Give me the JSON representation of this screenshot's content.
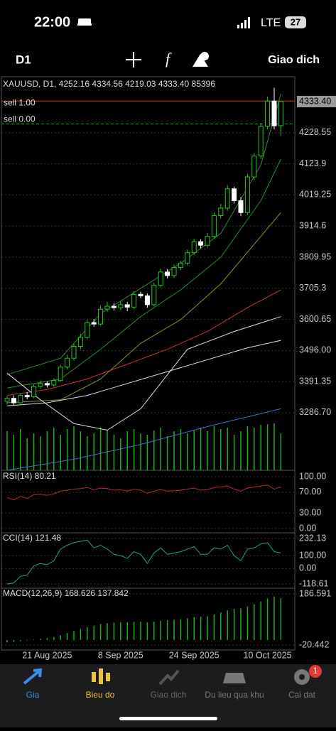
{
  "status_bar": {
    "time": "22:00",
    "network": "LTE",
    "battery": "27"
  },
  "toolbar": {
    "timeframe": "D1",
    "trade": "Giao dich"
  },
  "chart_data": {
    "type": "candlestick",
    "title": "XAUUSD, D1, 4252.16 4334.56 4219.03 4333.40 85396",
    "categories": [
      null,
      null,
      null,
      null,
      null,
      null,
      "21 Aug 2025",
      null,
      null,
      null,
      null,
      null,
      null,
      null,
      null,
      null,
      null,
      "8 Sep 2025",
      null,
      null,
      null,
      null,
      null,
      null,
      null,
      null,
      null,
      null,
      "24 Sep 2025",
      null,
      null,
      null,
      null,
      null,
      null,
      null,
      null,
      null,
      null,
      "10 Oct 2025",
      null,
      null
    ],
    "candles": [
      [
        3325,
        3342,
        3315,
        3335
      ],
      [
        3335,
        3345,
        3312,
        3320
      ],
      [
        3320,
        3352,
        3316,
        3345
      ],
      [
        3345,
        3356,
        3332,
        3340
      ],
      [
        3340,
        3382,
        3335,
        3375
      ],
      [
        3375,
        3395,
        3368,
        3385
      ],
      [
        3385,
        3392,
        3372,
        3380
      ],
      [
        3380,
        3402,
        3374,
        3395
      ],
      [
        3395,
        3448,
        3390,
        3440
      ],
      [
        3440,
        3482,
        3432,
        3470
      ],
      [
        3470,
        3520,
        3462,
        3510
      ],
      [
        3510,
        3552,
        3502,
        3540
      ],
      [
        3540,
        3600,
        3534,
        3590
      ],
      [
        3590,
        3602,
        3576,
        3585
      ],
      [
        3585,
        3648,
        3580,
        3635
      ],
      [
        3635,
        3660,
        3626,
        3645
      ],
      [
        3645,
        3655,
        3630,
        3640
      ],
      [
        3640,
        3662,
        3632,
        3650
      ],
      [
        3650,
        3660,
        3628,
        3642
      ],
      [
        3642,
        3696,
        3636,
        3685
      ],
      [
        3685,
        3694,
        3672,
        3680
      ],
      [
        3680,
        3688,
        3640,
        3650
      ],
      [
        3650,
        3724,
        3644,
        3715
      ],
      [
        3715,
        3772,
        3708,
        3760
      ],
      [
        3760,
        3770,
        3738,
        3748
      ],
      [
        3748,
        3786,
        3740,
        3775
      ],
      [
        3775,
        3798,
        3766,
        3790
      ],
      [
        3790,
        3836,
        3782,
        3825
      ],
      [
        3825,
        3872,
        3818,
        3862
      ],
      [
        3862,
        3870,
        3840,
        3850
      ],
      [
        3850,
        3892,
        3842,
        3880
      ],
      [
        3880,
        3960,
        3872,
        3950
      ],
      [
        3950,
        3990,
        3940,
        3975
      ],
      [
        3975,
        4052,
        3966,
        4040
      ],
      [
        4040,
        4048,
        3990,
        4000
      ],
      [
        4000,
        4012,
        3948,
        3960
      ],
      [
        3960,
        4090,
        3952,
        4080
      ],
      [
        4080,
        4160,
        4070,
        4150
      ],
      [
        4150,
        4262,
        4140,
        4250
      ],
      [
        4250,
        4350,
        4240,
        4335
      ],
      [
        4335,
        4380,
        4240,
        4252
      ],
      [
        4252.16,
        4334.56,
        4219.03,
        4333.4
      ]
    ],
    "bull_color": "#22c922",
    "bear_color": "#ffffff",
    "ylim": [
      3093,
      4417
    ],
    "yticks": [
      4228.55,
      4123.9,
      4019.25,
      3914.6,
      3809.95,
      3705.3,
      3600.65,
      {
        "value": 3496,
        "label": "3496.00"
      },
      3391.35,
      {
        "value": 3286.7,
        "label": "3286.70"
      }
    ],
    "last_price": {
      "value": 4333.4,
      "label": "4333.40"
    },
    "orders": [
      {
        "label": "sell 1.00",
        "price": 4335,
        "color": "#c0392b"
      },
      {
        "label": "sell 0.00",
        "price": 4258,
        "color": "#2e9a2e"
      }
    ],
    "lines": [
      {
        "color": "#2e8b2e",
        "x": [
          0,
          8,
          14,
          20,
          26,
          32,
          38,
          41
        ],
        "values": [
          3415,
          3470,
          3620,
          3705,
          3790,
          3890,
          4120,
          4360
        ]
      },
      {
        "color": "#2e8b2e",
        "x": [
          0,
          8,
          14,
          20,
          26,
          32,
          38,
          41
        ],
        "values": [
          3370,
          3400,
          3500,
          3610,
          3700,
          3810,
          4000,
          4140
        ]
      },
      {
        "color": "#7a9a2e",
        "x": [
          0,
          8,
          14,
          20,
          26,
          32,
          38,
          41
        ],
        "values": [
          3320,
          3330,
          3400,
          3520,
          3600,
          3720,
          3880,
          3960
        ]
      },
      {
        "color": "#c0392b",
        "x": [
          0,
          6,
          12,
          18,
          24,
          30,
          36,
          41
        ],
        "values": [
          3345,
          3365,
          3400,
          3450,
          3500,
          3560,
          3640,
          3700
        ]
      },
      {
        "color": "#dddddd",
        "x": [
          0,
          6,
          12,
          18,
          24,
          30,
          36,
          41
        ],
        "values": [
          3310,
          3320,
          3345,
          3385,
          3425,
          3465,
          3505,
          3530
        ]
      },
      {
        "color": "#dddddd",
        "x": [
          0,
          5,
          10,
          15,
          20,
          27,
          34,
          41
        ],
        "values": [
          3420,
          3330,
          3250,
          3228,
          3300,
          3500,
          3560,
          3610
        ]
      },
      {
        "color": "#3f6fd1",
        "x": [
          0,
          10,
          20,
          30,
          41
        ],
        "values": [
          3093,
          3130,
          3180,
          3240,
          3300
        ]
      }
    ],
    "volume": {
      "color": "#22b022",
      "ylim": [
        0,
        100
      ],
      "values": [
        55,
        50,
        58,
        45,
        52,
        48,
        55,
        60,
        50,
        58,
        62,
        55,
        48,
        52,
        60,
        57,
        50,
        45,
        55,
        58,
        52,
        50,
        56,
        60,
        48,
        55,
        58,
        52,
        57,
        60,
        55,
        62,
        58,
        60,
        50,
        55,
        62,
        60,
        64,
        65,
        66,
        52
      ]
    },
    "rsi": {
      "title": "RSI(14) 80.21",
      "color": "#b03030",
      "ylim": [
        -8.2,
        112.3
      ],
      "yticks": [
        {
          "value": 100,
          "label": "100.00"
        },
        {
          "value": 70,
          "label": "70.00"
        },
        {
          "value": 30,
          "label": "30.00"
        },
        {
          "value": 0,
          "label": "0.00"
        }
      ],
      "values": [
        60,
        55,
        62,
        58,
        65,
        66,
        64,
        67,
        72,
        74,
        76,
        77,
        79,
        75,
        78,
        77,
        74,
        75,
        72,
        76,
        74,
        68,
        72,
        75,
        72,
        73,
        74,
        76,
        78,
        74,
        75,
        79,
        80,
        82,
        76,
        72,
        78,
        80,
        82,
        84,
        76,
        80.21
      ]
    },
    "cci": {
      "title": "CCI(14) 121.48",
      "color": "#2aa08a",
      "ylim": [
        -151.5,
        276
      ],
      "yticks": [
        232.13,
        {
          "value": 100,
          "label": "100.00"
        },
        {
          "value": 0,
          "label": "0.00"
        },
        -118.61
      ],
      "values": [
        -120,
        -110,
        -60,
        -50,
        20,
        40,
        30,
        60,
        150,
        180,
        200,
        210,
        220,
        160,
        180,
        150,
        110,
        100,
        80,
        130,
        110,
        40,
        120,
        160,
        110,
        120,
        130,
        150,
        170,
        110,
        110,
        160,
        150,
        180,
        100,
        60,
        150,
        160,
        190,
        200,
        130,
        121.48
      ]
    },
    "macd": {
      "title": "MACD(12,26,9) 168.626 137.842",
      "color": "#22b022",
      "ylim": [
        -40.6,
        209.6
      ],
      "yticks": [
        186.591,
        -20.442
      ],
      "values": [
        -10,
        -8,
        -5,
        -2,
        2,
        5,
        8,
        12,
        20,
        28,
        36,
        44,
        52,
        58,
        64,
        68,
        70,
        72,
        72,
        74,
        74,
        72,
        74,
        78,
        80,
        82,
        84,
        88,
        92,
        94,
        96,
        104,
        112,
        120,
        126,
        128,
        136,
        144,
        156,
        168,
        176,
        168.626
      ]
    }
  },
  "nav": {
    "items": [
      "Gia",
      "Bieu do",
      "Giao dich",
      "Du lieu qua khu",
      "Cai dat"
    ],
    "badge": "1"
  }
}
